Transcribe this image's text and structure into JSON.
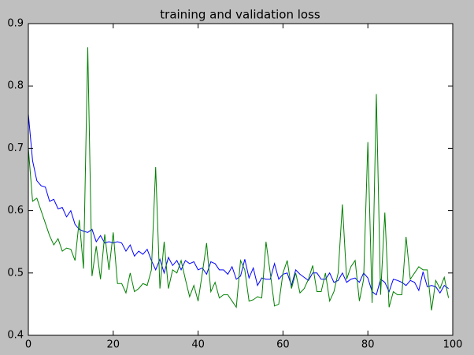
{
  "chart_data": {
    "type": "line",
    "title": "training and validation loss",
    "x": [
      0,
      1,
      2,
      3,
      4,
      5,
      6,
      7,
      8,
      9,
      10,
      11,
      12,
      13,
      14,
      15,
      16,
      17,
      18,
      19,
      20,
      21,
      22,
      23,
      24,
      25,
      26,
      27,
      28,
      29,
      30,
      31,
      32,
      33,
      34,
      35,
      36,
      37,
      38,
      39,
      40,
      41,
      42,
      43,
      44,
      45,
      46,
      47,
      48,
      49,
      50,
      51,
      52,
      53,
      54,
      55,
      56,
      57,
      58,
      59,
      60,
      61,
      62,
      63,
      64,
      65,
      66,
      67,
      68,
      69,
      70,
      71,
      72,
      73,
      74,
      75,
      76,
      77,
      78,
      79,
      80,
      81,
      82,
      83,
      84,
      85,
      86,
      87,
      88,
      89,
      90,
      91,
      92,
      93,
      94,
      95,
      96,
      97,
      98,
      99
    ],
    "series": [
      {
        "color": "#0000ff",
        "values": [
          0.755,
          0.68,
          0.648,
          0.64,
          0.638,
          0.615,
          0.618,
          0.603,
          0.605,
          0.59,
          0.6,
          0.578,
          0.57,
          0.567,
          0.565,
          0.57,
          0.55,
          0.56,
          0.548,
          0.55,
          0.548,
          0.55,
          0.548,
          0.535,
          0.545,
          0.527,
          0.535,
          0.53,
          0.538,
          0.52,
          0.505,
          0.522,
          0.5,
          0.525,
          0.512,
          0.52,
          0.505,
          0.52,
          0.515,
          0.518,
          0.505,
          0.508,
          0.498,
          0.518,
          0.515,
          0.505,
          0.505,
          0.498,
          0.51,
          0.49,
          0.495,
          0.522,
          0.492,
          0.508,
          0.48,
          0.492,
          0.49,
          0.49,
          0.515,
          0.49,
          0.498,
          0.5,
          0.48,
          0.505,
          0.498,
          0.493,
          0.488,
          0.5,
          0.5,
          0.49,
          0.49,
          0.5,
          0.485,
          0.488,
          0.5,
          0.485,
          0.49,
          0.492,
          0.485,
          0.5,
          0.492,
          0.47,
          0.465,
          0.49,
          0.485,
          0.47,
          0.49,
          0.488,
          0.485,
          0.48,
          0.488,
          0.485,
          0.472,
          0.502,
          0.478,
          0.48,
          0.478,
          0.468,
          0.48,
          0.475
        ]
      },
      {
        "color": "#008000",
        "values": [
          0.7,
          0.615,
          0.62,
          0.6,
          0.58,
          0.56,
          0.545,
          0.555,
          0.535,
          0.54,
          0.538,
          0.52,
          0.585,
          0.507,
          0.862,
          0.495,
          0.543,
          0.49,
          0.562,
          0.505,
          0.565,
          0.483,
          0.483,
          0.468,
          0.5,
          0.47,
          0.475,
          0.483,
          0.48,
          0.505,
          0.67,
          0.475,
          0.55,
          0.475,
          0.505,
          0.5,
          0.52,
          0.49,
          0.462,
          0.48,
          0.455,
          0.5,
          0.548,
          0.47,
          0.485,
          0.46,
          0.465,
          0.465,
          0.455,
          0.445,
          0.52,
          0.505,
          0.455,
          0.457,
          0.462,
          0.46,
          0.55,
          0.5,
          0.447,
          0.45,
          0.5,
          0.52,
          0.475,
          0.5,
          0.468,
          0.475,
          0.49,
          0.512,
          0.47,
          0.47,
          0.5,
          0.455,
          0.47,
          0.5,
          0.61,
          0.49,
          0.51,
          0.52,
          0.455,
          0.49,
          0.71,
          0.452,
          0.787,
          0.465,
          0.597,
          0.445,
          0.47,
          0.465,
          0.465,
          0.558,
          0.49,
          0.5,
          0.51,
          0.505,
          0.505,
          0.44,
          0.488,
          0.475,
          0.493,
          0.46
        ]
      }
    ],
    "xlim": [
      0,
      100
    ],
    "xticks": [
      0,
      20,
      40,
      60,
      80,
      100
    ],
    "ylim": [
      0.4,
      0.9
    ],
    "yticks": [
      0.4,
      0.5,
      0.6,
      0.7,
      0.8,
      0.9
    ]
  }
}
